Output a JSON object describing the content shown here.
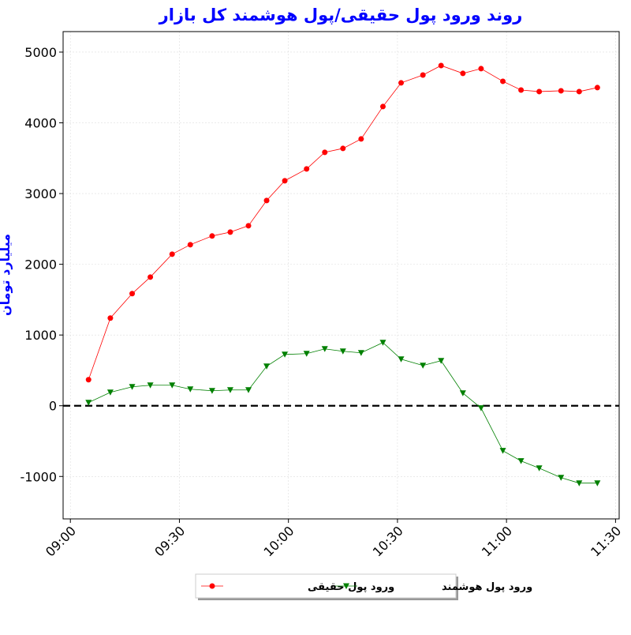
{
  "chart_data": {
    "type": "line",
    "title": "روند ورود پول حقیقی/پول هوشمند کل بازار",
    "y_label": "میلیارد تومان",
    "x": [
      "09:05",
      "09:11",
      "09:17",
      "09:22",
      "09:28",
      "09:33",
      "09:39",
      "09:44",
      "09:49",
      "09:54",
      "09:59",
      "10:05",
      "10:10",
      "10:15",
      "10:20",
      "10:26",
      "10:31",
      "10:37",
      "10:42",
      "10:48",
      "10:53",
      "10:59",
      "11:04",
      "11:09",
      "11:15",
      "11:20",
      "11:25"
    ],
    "series": [
      {
        "name": "ورود پول حقیقی",
        "color": "#ff0000",
        "marker": "circle",
        "values": [
          368,
          1239,
          1585,
          1819,
          2143,
          2277,
          2400,
          2455,
          2545,
          2902,
          3181,
          3348,
          3583,
          3638,
          3772,
          4230,
          4565,
          4676,
          4810,
          4699,
          4766,
          4587,
          4464,
          4442,
          4453,
          4442,
          4498
        ]
      },
      {
        "name": "ورود پول هوشمند",
        "color": "#008000",
        "marker": "triangle-down",
        "values": [
          45,
          190,
          268,
          290,
          290,
          234,
          212,
          223,
          223,
          558,
          725,
          737,
          804,
          770,
          748,
          893,
          658,
          569,
          636,
          179,
          -33,
          -636,
          -781,
          -882,
          -1016,
          -1094,
          -1094
        ]
      }
    ],
    "xlim": [
      "08:58",
      "11:31"
    ],
    "xticks": [
      "09:00",
      "09:30",
      "10:00",
      "10:30",
      "11:00",
      "11:30"
    ],
    "ylim": [
      -1600,
      5290
    ],
    "yticks": [
      -1000,
      0,
      1000,
      2000,
      3000,
      4000,
      5000
    ],
    "hline": 0,
    "grid": true,
    "legend": "bottom"
  }
}
